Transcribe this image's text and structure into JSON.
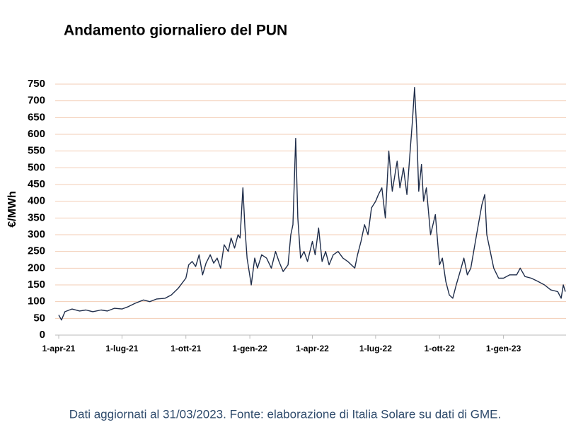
{
  "chart_data": {
    "type": "line",
    "title": "Andamento giornaliero del PUN",
    "y_label": "€/MWh",
    "footnote": "Dati aggiornati al 31/03/2023. Fonte: elaborazione di Italia Solare su dati di GME.",
    "x": [
      "2021-04-01",
      "2021-04-05",
      "2021-04-10",
      "2021-04-20",
      "2021-05-01",
      "2021-05-10",
      "2021-05-20",
      "2021-06-01",
      "2021-06-10",
      "2021-06-20",
      "2021-07-01",
      "2021-07-10",
      "2021-07-20",
      "2021-08-01",
      "2021-08-10",
      "2021-08-20",
      "2021-09-01",
      "2021-09-10",
      "2021-09-20",
      "2021-10-01",
      "2021-10-05",
      "2021-10-10",
      "2021-10-15",
      "2021-10-20",
      "2021-10-25",
      "2021-10-30",
      "2021-11-05",
      "2021-11-10",
      "2021-11-15",
      "2021-11-20",
      "2021-11-25",
      "2021-12-01",
      "2021-12-05",
      "2021-12-10",
      "2021-12-15",
      "2021-12-18",
      "2021-12-22",
      "2021-12-25",
      "2021-12-28",
      "2022-01-03",
      "2022-01-08",
      "2022-01-12",
      "2022-01-18",
      "2022-01-25",
      "2022-02-01",
      "2022-02-07",
      "2022-02-12",
      "2022-02-18",
      "2022-02-25",
      "2022-03-01",
      "2022-03-04",
      "2022-03-08",
      "2022-03-11",
      "2022-03-15",
      "2022-03-20",
      "2022-03-25",
      "2022-04-01",
      "2022-04-05",
      "2022-04-10",
      "2022-04-15",
      "2022-04-20",
      "2022-04-25",
      "2022-05-01",
      "2022-05-08",
      "2022-05-15",
      "2022-05-22",
      "2022-06-01",
      "2022-06-05",
      "2022-06-10",
      "2022-06-15",
      "2022-06-20",
      "2022-06-25",
      "2022-07-01",
      "2022-07-05",
      "2022-07-10",
      "2022-07-15",
      "2022-07-20",
      "2022-07-25",
      "2022-08-01",
      "2022-08-05",
      "2022-08-10",
      "2022-08-15",
      "2022-08-20",
      "2022-08-23",
      "2022-08-26",
      "2022-08-29",
      "2022-09-01",
      "2022-09-05",
      "2022-09-08",
      "2022-09-12",
      "2022-09-18",
      "2022-09-25",
      "2022-10-01",
      "2022-10-05",
      "2022-10-10",
      "2022-10-15",
      "2022-10-20",
      "2022-10-25",
      "2022-11-01",
      "2022-11-05",
      "2022-11-10",
      "2022-11-15",
      "2022-11-20",
      "2022-11-25",
      "2022-12-01",
      "2022-12-05",
      "2022-12-08",
      "2022-12-12",
      "2022-12-18",
      "2022-12-25",
      "2023-01-01",
      "2023-01-10",
      "2023-01-20",
      "2023-01-25",
      "2023-02-01",
      "2023-02-10",
      "2023-02-20",
      "2023-03-01",
      "2023-03-10",
      "2023-03-20",
      "2023-03-25",
      "2023-03-28",
      "2023-03-31"
    ],
    "series": [
      {
        "name": "PUN",
        "color": "#1f2d4a",
        "values": [
          60,
          45,
          70,
          78,
          72,
          75,
          70,
          75,
          72,
          80,
          78,
          85,
          95,
          105,
          100,
          108,
          110,
          120,
          140,
          170,
          210,
          220,
          205,
          240,
          180,
          215,
          240,
          215,
          230,
          200,
          270,
          250,
          290,
          260,
          300,
          290,
          440,
          320,
          230,
          150,
          230,
          200,
          240,
          230,
          200,
          250,
          220,
          190,
          210,
          300,
          330,
          588,
          350,
          230,
          250,
          220,
          280,
          240,
          320,
          220,
          250,
          210,
          240,
          250,
          230,
          220,
          200,
          240,
          280,
          330,
          300,
          380,
          400,
          420,
          440,
          350,
          550,
          430,
          520,
          440,
          500,
          420,
          560,
          640,
          740,
          620,
          430,
          510,
          400,
          440,
          300,
          360,
          210,
          230,
          160,
          120,
          110,
          150,
          200,
          230,
          180,
          200,
          260,
          320,
          390,
          420,
          300,
          260,
          200,
          170,
          170,
          180,
          180,
          200,
          175,
          170,
          160,
          150,
          135,
          130,
          110,
          150,
          130
        ]
      }
    ],
    "xlim": [
      "2021-04-01",
      "2023-03-31"
    ],
    "xticks": [
      {
        "value": "2021-04-01",
        "label": "1-apr-21"
      },
      {
        "value": "2021-07-01",
        "label": "1-lug-21"
      },
      {
        "value": "2021-10-01",
        "label": "1-ott-21"
      },
      {
        "value": "2022-01-01",
        "label": "1-gen-22"
      },
      {
        "value": "2022-04-01",
        "label": "1-apr-22"
      },
      {
        "value": "2022-07-01",
        "label": "1-lug-22"
      },
      {
        "value": "2022-10-01",
        "label": "1-ott-22"
      },
      {
        "value": "2023-01-01",
        "label": "1-gen-23"
      }
    ],
    "ylim": [
      0,
      750
    ],
    "yticks": [
      0,
      50,
      100,
      150,
      200,
      250,
      300,
      350,
      400,
      450,
      500,
      550,
      600,
      650,
      700,
      750
    ],
    "grid": true
  }
}
